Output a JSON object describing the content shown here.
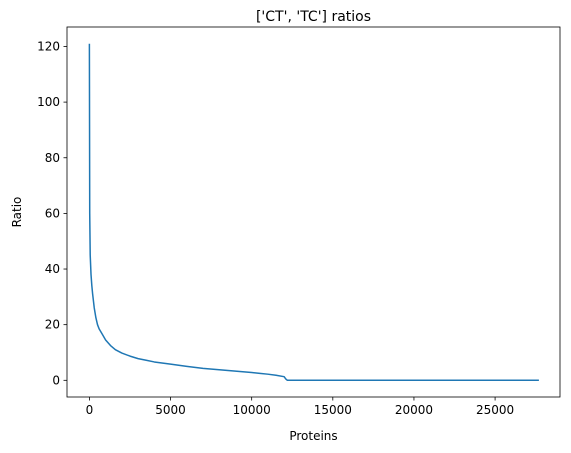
{
  "chart_data": {
    "type": "line",
    "title": "['CT', 'TC'] ratios",
    "xlabel": "Proteins",
    "ylabel": "Ratio",
    "xlim": [
      -1380,
      29000
    ],
    "ylim": [
      -6,
      127
    ],
    "xticks": [
      0,
      5000,
      10000,
      15000,
      20000,
      25000
    ],
    "yticks": [
      0,
      20,
      40,
      60,
      80,
      100,
      120
    ],
    "grid": false,
    "series": [
      {
        "color": "#1f77b4",
        "x": [
          0,
          20,
          50,
          100,
          150,
          200,
          300,
          400,
          500,
          600,
          800,
          1000,
          1300,
          1600,
          2000,
          2500,
          3000,
          3500,
          4000,
          5000,
          6000,
          7000,
          8000,
          9000,
          10000,
          10500,
          11000,
          11500,
          12000,
          12100,
          12200,
          15000,
          20000,
          25000,
          27700
        ],
        "y": [
          121,
          60,
          45,
          38,
          34,
          31,
          26,
          22.5,
          20,
          18.5,
          16.5,
          14.5,
          12.5,
          11,
          9.8,
          8.7,
          7.8,
          7.2,
          6.6,
          5.8,
          5,
          4.3,
          3.8,
          3.3,
          2.8,
          2.5,
          2.2,
          1.8,
          1.3,
          0.5,
          0,
          0,
          0,
          0,
          0
        ]
      }
    ]
  }
}
